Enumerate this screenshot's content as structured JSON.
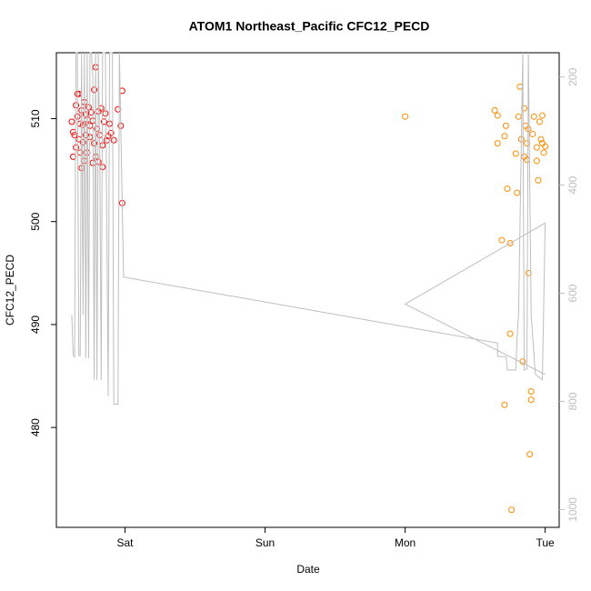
{
  "chart_data": {
    "type": "scatter",
    "title": "ATOM1 Northeast_Pacific CFC12_PECD",
    "x_label": "Date",
    "y_label": "CFC12_PECD",
    "xlim": [
      -0.49,
      3.1
    ],
    "xticks": [
      {
        "value": 0,
        "label": "Sat"
      },
      {
        "value": 1,
        "label": "Sun"
      },
      {
        "value": 2,
        "label": "Mon"
      },
      {
        "value": 3,
        "label": "Tue"
      }
    ],
    "ylim": [
      470.3,
      516.4
    ],
    "yticks": [
      480,
      490,
      500,
      510
    ],
    "y2lim": [
      1033,
      155
    ],
    "y2ticks": [
      200,
      400,
      600,
      800,
      1000
    ],
    "y2_color": "#bebebe",
    "series": [
      {
        "color": "#ff0000",
        "x": [
          -0.38,
          -0.37,
          -0.37,
          -0.36,
          -0.35,
          -0.35,
          -0.34,
          -0.34,
          -0.33,
          -0.33,
          -0.32,
          -0.32,
          -0.31,
          -0.31,
          -0.3,
          -0.3,
          -0.29,
          -0.29,
          -0.28,
          -0.28,
          -0.27,
          -0.27,
          -0.26,
          -0.25,
          -0.25,
          -0.24,
          -0.23,
          -0.23,
          -0.22,
          -0.22,
          -0.21,
          -0.21,
          -0.2,
          -0.19,
          -0.19,
          -0.18,
          -0.17,
          -0.16,
          -0.16,
          -0.15,
          -0.14,
          -0.13,
          -0.12,
          -0.11,
          -0.1,
          -0.02,
          -0.02,
          -0.03,
          -0.05,
          -0.08
        ],
        "values": [
          509.7,
          508.7,
          506.3,
          508.4,
          511.3,
          507.2,
          512.4,
          510.2,
          512.4,
          508.0,
          509.5,
          506.7,
          510.8,
          505.2,
          509.4,
          507.7,
          511.6,
          505.9,
          510.4,
          508.4,
          509.9,
          506.7,
          511.1,
          509.3,
          508.2,
          510.6,
          505.7,
          509.8,
          512.8,
          507.6,
          515.0,
          506.3,
          509.0,
          510.7,
          505.8,
          508.4,
          511.0,
          507.4,
          505.3,
          509.7,
          510.5,
          507.9,
          508.3,
          509.5,
          508.6,
          512.7,
          501.8,
          509.3,
          510.9,
          507.9
        ]
      },
      {
        "color": "#ff8c00",
        "x": [
          2.0,
          2.64,
          2.66,
          2.66,
          2.69,
          2.71,
          2.72,
          2.73,
          2.75,
          2.75,
          2.76,
          2.71,
          2.79,
          2.8,
          2.81,
          2.82,
          2.83,
          2.84,
          2.85,
          2.85,
          2.86,
          2.87,
          2.87,
          2.88,
          2.88,
          2.89,
          2.9,
          2.9,
          2.91,
          2.92,
          2.94,
          2.94,
          2.95,
          2.96,
          2.97,
          2.98,
          2.98,
          2.99,
          3.0
        ],
        "values": [
          510.2,
          510.8,
          510.3,
          507.6,
          498.2,
          508.3,
          509.3,
          503.2,
          497.9,
          489.1,
          472.0,
          482.2,
          506.6,
          502.8,
          510.2,
          513.1,
          508.0,
          486.4,
          511.0,
          506.3,
          509.3,
          507.6,
          506.0,
          509.0,
          495.0,
          477.4,
          483.5,
          482.7,
          508.5,
          510.2,
          507.2,
          505.9,
          504.0,
          509.7,
          508.0,
          507.6,
          510.3,
          506.7,
          507.3
        ]
      },
      {
        "color": "#bebebe",
        "type": "line",
        "axis": "y2",
        "x": [
          -0.38,
          -0.37,
          -0.36,
          -0.35,
          -0.34,
          -0.33,
          -0.32,
          -0.31,
          -0.3,
          -0.29,
          -0.28,
          -0.27,
          -0.26,
          -0.25,
          -0.24,
          -0.23,
          -0.22,
          -0.21,
          -0.2,
          -0.19,
          -0.18,
          -0.17,
          -0.16,
          -0.14,
          -0.12,
          -0.11,
          -0.09,
          -0.08,
          -0.05,
          -0.04,
          -0.01,
          2.66,
          2.66,
          2.72,
          2.73,
          2.79,
          2.8,
          2.81,
          2.84,
          2.85,
          2.87,
          2.88,
          2.9,
          2.93,
          2.98,
          3.0,
          2.0,
          3.0
        ],
        "values": [
          640,
          715,
          718,
          155,
          155,
          715,
          715,
          155,
          640,
          155,
          720,
          155,
          720,
          155,
          155,
          200,
          760,
          155,
          760,
          155,
          350,
          760,
          155,
          155,
          790,
          155,
          155,
          805,
          805,
          155,
          570,
          692,
          717,
          717,
          742,
          742,
          680,
          640,
          155,
          742,
          740,
          155,
          640,
          750,
          760,
          470,
          620,
          750
        ]
      }
    ]
  }
}
